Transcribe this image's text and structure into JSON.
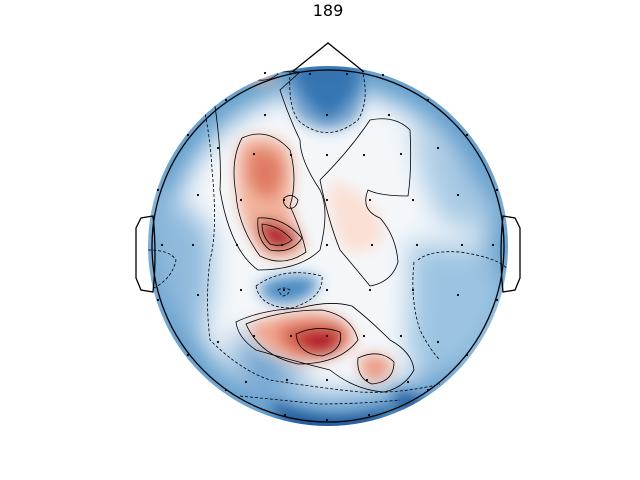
{
  "chart_data": {
    "type": "heatmap",
    "subtype": "eeg-topomap",
    "title": "189",
    "colormap": "RdBu_r",
    "colors": {
      "positive": "#b2182b",
      "neutral": "#f7f7f7",
      "negative": "#2166ac",
      "contour": "#000000",
      "head_outline": "#000000",
      "sensor": "#000000"
    },
    "contour_style": {
      "positive": "solid",
      "negative": "dashed"
    },
    "sensor_count": 64,
    "features": {
      "nose": true,
      "ears": true,
      "sensors_shown": true
    }
  }
}
